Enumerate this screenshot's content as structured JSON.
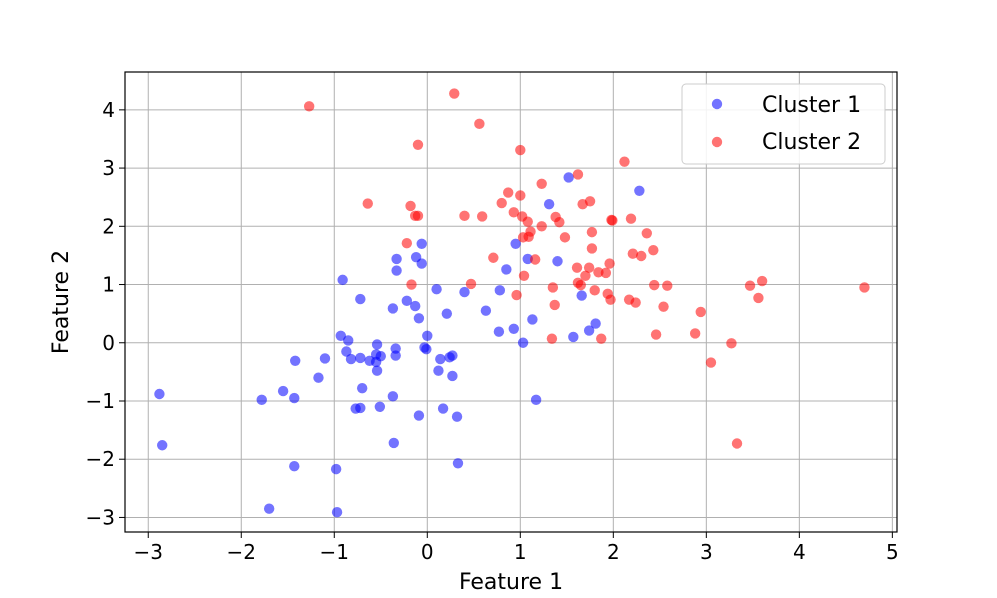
{
  "chart_data": {
    "type": "scatter",
    "title": "",
    "xlabel": "Feature 1",
    "ylabel": "Feature 2",
    "xlim": [
      -3.25,
      5.05
    ],
    "ylim": [
      -3.25,
      4.65
    ],
    "xticks": [
      -3,
      -2,
      -1,
      0,
      1,
      2,
      3,
      4,
      5
    ],
    "yticks": [
      -3,
      -2,
      -1,
      0,
      1,
      2,
      3,
      4
    ],
    "xtick_labels": [
      "−3",
      "−2",
      "−1",
      "0",
      "1",
      "2",
      "3",
      "4",
      "5"
    ],
    "ytick_labels": [
      "−3",
      "−2",
      "−1",
      "0",
      "1",
      "2",
      "3",
      "4"
    ],
    "grid": true,
    "legend_position": "top-right",
    "series": [
      {
        "name": "Cluster 1",
        "color": "#0000ff",
        "points": [
          [
            -2.88,
            -0.88
          ],
          [
            -2.85,
            -1.76
          ],
          [
            -1.78,
            -0.98
          ],
          [
            -1.7,
            -2.85
          ],
          [
            -1.55,
            -0.83
          ],
          [
            -1.43,
            -0.95
          ],
          [
            -1.43,
            -2.12
          ],
          [
            -1.42,
            -0.31
          ],
          [
            -1.17,
            -0.6
          ],
          [
            -1.1,
            -0.27
          ],
          [
            -0.98,
            -2.17
          ],
          [
            -0.97,
            -2.91
          ],
          [
            -0.93,
            0.12
          ],
          [
            -0.91,
            1.08
          ],
          [
            -0.87,
            -0.15
          ],
          [
            -0.85,
            0.04
          ],
          [
            -0.82,
            -0.28
          ],
          [
            -0.77,
            -1.13
          ],
          [
            -0.72,
            0.75
          ],
          [
            -0.72,
            -1.12
          ],
          [
            -0.72,
            -0.26
          ],
          [
            -0.7,
            -0.78
          ],
          [
            -0.62,
            -0.31
          ],
          [
            -0.55,
            -0.33
          ],
          [
            -0.55,
            -0.2
          ],
          [
            -0.54,
            -0.48
          ],
          [
            -0.54,
            -0.03
          ],
          [
            -0.5,
            -0.23
          ],
          [
            -0.51,
            -1.1
          ],
          [
            -0.37,
            -0.92
          ],
          [
            -0.37,
            0.59
          ],
          [
            -0.36,
            -1.72
          ],
          [
            -0.34,
            -0.22
          ],
          [
            -0.34,
            -0.1
          ],
          [
            -0.33,
            1.24
          ],
          [
            -0.33,
            1.44
          ],
          [
            -0.22,
            0.72
          ],
          [
            -0.13,
            0.63
          ],
          [
            -0.12,
            1.47
          ],
          [
            -0.09,
            -1.25
          ],
          [
            -0.09,
            0.42
          ],
          [
            -0.06,
            1.36
          ],
          [
            -0.06,
            1.7
          ],
          [
            -0.03,
            -0.08
          ],
          [
            -0.01,
            -0.11
          ],
          [
            0.0,
            0.12
          ],
          [
            0.1,
            0.92
          ],
          [
            0.12,
            -0.48
          ],
          [
            0.14,
            -0.28
          ],
          [
            0.17,
            -1.13
          ],
          [
            0.21,
            0.5
          ],
          [
            0.24,
            -0.25
          ],
          [
            0.27,
            -0.22
          ],
          [
            0.27,
            -0.57
          ],
          [
            0.32,
            -1.27
          ],
          [
            0.33,
            -2.07
          ],
          [
            0.4,
            0.87
          ],
          [
            0.63,
            0.55
          ],
          [
            0.77,
            0.19
          ],
          [
            0.78,
            0.9
          ],
          [
            0.85,
            1.26
          ],
          [
            0.93,
            0.24
          ],
          [
            0.95,
            1.7
          ],
          [
            1.03,
            0.0
          ],
          [
            1.08,
            1.44
          ],
          [
            1.13,
            0.4
          ],
          [
            1.17,
            -0.98
          ],
          [
            1.31,
            2.38
          ],
          [
            1.4,
            1.4
          ],
          [
            1.52,
            2.84
          ],
          [
            1.57,
            0.1
          ],
          [
            1.66,
            0.81
          ],
          [
            1.74,
            0.21
          ],
          [
            1.81,
            0.33
          ],
          [
            2.28,
            2.61
          ]
        ]
      },
      {
        "name": "Cluster 2",
        "color": "#ff0000",
        "points": [
          [
            -1.27,
            4.06
          ],
          [
            -0.64,
            2.39
          ],
          [
            -0.22,
            1.71
          ],
          [
            -0.18,
            2.35
          ],
          [
            -0.17,
            1.0
          ],
          [
            -0.13,
            2.18
          ],
          [
            -0.1,
            2.18
          ],
          [
            -0.1,
            3.4
          ],
          [
            0.29,
            4.28
          ],
          [
            0.4,
            2.18
          ],
          [
            0.47,
            1.01
          ],
          [
            0.56,
            3.76
          ],
          [
            0.59,
            2.17
          ],
          [
            0.71,
            1.46
          ],
          [
            0.8,
            2.4
          ],
          [
            0.87,
            2.58
          ],
          [
            0.93,
            2.24
          ],
          [
            0.96,
            0.82
          ],
          [
            1.0,
            3.31
          ],
          [
            1.0,
            2.53
          ],
          [
            1.02,
            2.17
          ],
          [
            1.03,
            1.81
          ],
          [
            1.04,
            1.15
          ],
          [
            1.08,
            2.08
          ],
          [
            1.09,
            1.82
          ],
          [
            1.11,
            1.91
          ],
          [
            1.16,
            1.43
          ],
          [
            1.23,
            2.73
          ],
          [
            1.23,
            2.0
          ],
          [
            1.34,
            0.07
          ],
          [
            1.35,
            0.95
          ],
          [
            1.37,
            0.65
          ],
          [
            1.38,
            2.16
          ],
          [
            1.42,
            2.07
          ],
          [
            1.48,
            1.81
          ],
          [
            1.61,
            1.29
          ],
          [
            1.62,
            2.89
          ],
          [
            1.62,
            1.03
          ],
          [
            1.65,
            0.99
          ],
          [
            1.67,
            2.38
          ],
          [
            1.7,
            1.15
          ],
          [
            1.74,
            1.29
          ],
          [
            1.75,
            2.43
          ],
          [
            1.77,
            1.9
          ],
          [
            1.77,
            1.62
          ],
          [
            1.8,
            0.9
          ],
          [
            1.84,
            1.21
          ],
          [
            1.87,
            0.07
          ],
          [
            1.92,
            1.2
          ],
          [
            1.94,
            0.84
          ],
          [
            1.96,
            1.36
          ],
          [
            1.97,
            0.74
          ],
          [
            1.98,
            2.11
          ],
          [
            1.99,
            2.1
          ],
          [
            2.12,
            3.11
          ],
          [
            2.17,
            0.74
          ],
          [
            2.19,
            2.13
          ],
          [
            2.21,
            1.53
          ],
          [
            2.24,
            0.69
          ],
          [
            2.3,
            1.49
          ],
          [
            2.36,
            1.88
          ],
          [
            2.43,
            1.59
          ],
          [
            2.44,
            0.99
          ],
          [
            2.46,
            0.14
          ],
          [
            2.54,
            0.62
          ],
          [
            2.58,
            0.98
          ],
          [
            2.88,
            0.16
          ],
          [
            2.94,
            0.53
          ],
          [
            3.05,
            -0.34
          ],
          [
            3.27,
            -0.01
          ],
          [
            3.33,
            -1.73
          ],
          [
            3.47,
            0.98
          ],
          [
            3.56,
            0.77
          ],
          [
            3.6,
            1.06
          ],
          [
            4.7,
            0.95
          ]
        ]
      }
    ]
  }
}
